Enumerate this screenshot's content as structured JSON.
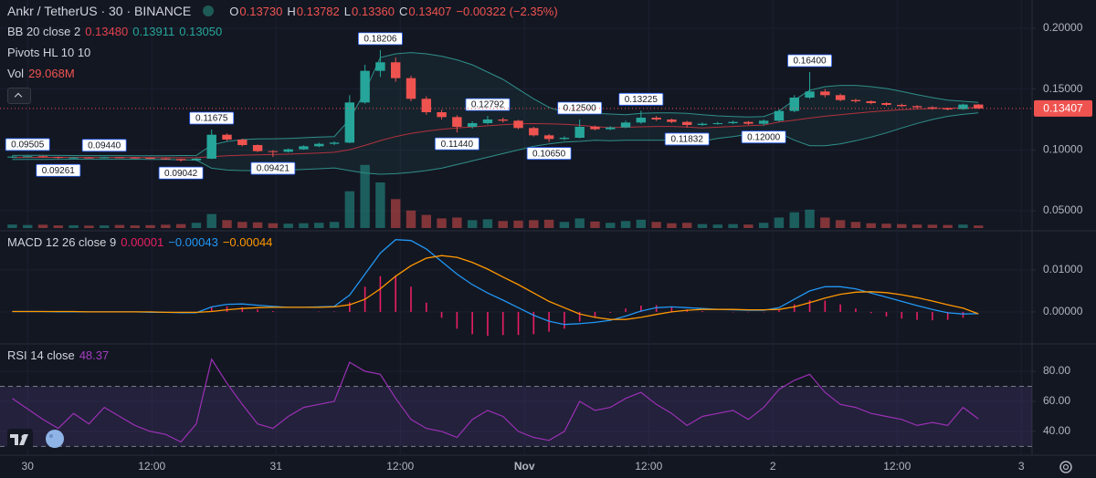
{
  "chart_data": [
    {
      "type": "candlestick",
      "title": "Ankr / TetherUS · 30 · BINANCE",
      "ohlc_legend": [
        {
          "name": "O",
          "value": 0.1373,
          "label": "0.13730"
        },
        {
          "name": "H",
          "value": 0.13782,
          "label": "0.13782"
        },
        {
          "name": "L",
          "value": 0.1336,
          "label": "0.13360"
        },
        {
          "name": "C",
          "value": 0.13407,
          "label": "0.13407"
        }
      ],
      "change": {
        "value": -0.00322,
        "percent": -2.35,
        "label": "−0.00322 (−2.35%)"
      },
      "up_color": "#26a69a",
      "down_color": "#ef5350",
      "ylim": [
        0.0358,
        0.2232
      ],
      "yticks": [
        {
          "value": 0.2,
          "label": "0.20000"
        },
        {
          "value": 0.15,
          "label": "0.15000"
        },
        {
          "value": 0.1,
          "label": "0.10000"
        },
        {
          "value": 0.05,
          "label": "0.05000"
        }
      ],
      "grid": true,
      "open": [
        0.094,
        0.0945,
        0.0948,
        0.0942,
        0.0935,
        0.0938,
        0.0936,
        0.094,
        0.0938,
        0.0935,
        0.093,
        0.0925,
        0.0915,
        0.0928,
        0.1125,
        0.1085,
        0.104,
        0.099,
        0.0985,
        0.1005,
        0.103,
        0.105,
        0.106,
        0.139,
        0.165,
        0.172,
        0.159,
        0.142,
        0.131,
        0.127,
        0.119,
        0.122,
        0.125,
        0.124,
        0.118,
        0.112,
        0.109,
        0.11,
        0.119,
        0.117,
        0.1185,
        0.1225,
        0.1265,
        0.125,
        0.123,
        0.1205,
        0.1215,
        0.122,
        0.123,
        0.1215,
        0.124,
        0.132,
        0.143,
        0.148,
        0.145,
        0.141,
        0.14,
        0.1385,
        0.137,
        0.136,
        0.135,
        0.134,
        0.1335,
        0.1373
      ],
      "high": [
        0.095,
        0.09505,
        0.0952,
        0.0946,
        0.0942,
        0.0941,
        0.0944,
        0.0943,
        0.0941,
        0.0939,
        0.0934,
        0.0928,
        0.0932,
        0.11675,
        0.1135,
        0.1092,
        0.1045,
        0.0998,
        0.1012,
        0.1038,
        0.106,
        0.107,
        0.145,
        0.17,
        0.18206,
        0.176,
        0.161,
        0.144,
        0.133,
        0.1285,
        0.1235,
        0.12792,
        0.1265,
        0.1248,
        0.119,
        0.113,
        0.1112,
        0.125,
        0.12,
        0.1195,
        0.124,
        0.13225,
        0.1278,
        0.1258,
        0.1238,
        0.1225,
        0.123,
        0.124,
        0.1238,
        0.125,
        0.1335,
        0.145,
        0.164,
        0.15,
        0.1462,
        0.142,
        0.1408,
        0.1392,
        0.138,
        0.1368,
        0.1358,
        0.1348,
        0.138,
        0.13782
      ],
      "low": [
        0.0935,
        0.094,
        0.0937,
        0.09261,
        0.093,
        0.0931,
        0.0932,
        0.0934,
        0.093,
        0.0926,
        0.092,
        0.09042,
        0.091,
        0.0925,
        0.1075,
        0.103,
        0.0982,
        0.09421,
        0.0978,
        0.1,
        0.1022,
        0.104,
        0.1055,
        0.138,
        0.16,
        0.156,
        0.14,
        0.129,
        0.125,
        0.1144,
        0.1175,
        0.121,
        0.1225,
        0.117,
        0.111,
        0.1065,
        0.108,
        0.1095,
        0.116,
        0.1162,
        0.1178,
        0.1215,
        0.1238,
        0.122,
        0.11832,
        0.1198,
        0.1208,
        0.1212,
        0.1205,
        0.12,
        0.1232,
        0.131,
        0.142,
        0.1432,
        0.14,
        0.1388,
        0.1375,
        0.136,
        0.1352,
        0.134,
        0.133,
        0.1325,
        0.133,
        0.1336
      ],
      "close": [
        0.0945,
        0.0948,
        0.0942,
        0.0935,
        0.0938,
        0.0936,
        0.094,
        0.0938,
        0.0935,
        0.093,
        0.0925,
        0.0915,
        0.0928,
        0.1125,
        0.1085,
        0.104,
        0.099,
        0.0985,
        0.1005,
        0.103,
        0.105,
        0.106,
        0.139,
        0.165,
        0.172,
        0.159,
        0.142,
        0.131,
        0.127,
        0.119,
        0.122,
        0.125,
        0.124,
        0.118,
        0.112,
        0.109,
        0.11,
        0.119,
        0.117,
        0.1185,
        0.1225,
        0.1265,
        0.125,
        0.123,
        0.1205,
        0.1215,
        0.122,
        0.123,
        0.1215,
        0.124,
        0.132,
        0.143,
        0.148,
        0.145,
        0.141,
        0.14,
        0.1385,
        0.137,
        0.136,
        0.135,
        0.134,
        0.1335,
        0.1373,
        0.13407
      ],
      "last_price": {
        "value": 0.13407,
        "label": "0.13407"
      },
      "bb": {
        "name": "BB 20 close 2",
        "basis_color": "#b2323e",
        "band_color": "#2f8f8a",
        "legend": [
          {
            "value": 0.1348,
            "label": "0.13480",
            "color": "#e0424e"
          },
          {
            "value": 0.13911,
            "label": "0.13911",
            "color": "#26a69a"
          },
          {
            "value": 0.1305,
            "label": "0.13050",
            "color": "#26a69a"
          }
        ],
        "basis": [
          0.0938,
          0.0939,
          0.0939,
          0.0939,
          0.0939,
          0.0938,
          0.0938,
          0.0938,
          0.0938,
          0.0937,
          0.0937,
          0.0936,
          0.0936,
          0.0945,
          0.0952,
          0.0957,
          0.096,
          0.0962,
          0.0965,
          0.097,
          0.0975,
          0.0981,
          0.1002,
          0.1037,
          0.1077,
          0.111,
          0.1136,
          0.1155,
          0.117,
          0.118,
          0.1189,
          0.1198,
          0.1207,
          0.1214,
          0.1216,
          0.1214,
          0.121,
          0.1203,
          0.1191,
          0.1183,
          0.1186,
          0.119,
          0.1193,
          0.1193,
          0.1188,
          0.1181,
          0.1187,
          0.1193,
          0.1199,
          0.1204,
          0.123,
          0.1245,
          0.1262,
          0.1277,
          0.129,
          0.1302,
          0.1313,
          0.1322,
          0.133,
          0.1336,
          0.134,
          0.1343,
          0.1346,
          0.1348
        ],
        "upper": [
          0.0955,
          0.0956,
          0.0956,
          0.0955,
          0.0954,
          0.0953,
          0.0953,
          0.0953,
          0.0952,
          0.0952,
          0.0952,
          0.0954,
          0.0955,
          0.104,
          0.107,
          0.1085,
          0.109,
          0.1092,
          0.1095,
          0.11,
          0.1105,
          0.111,
          0.125,
          0.148,
          0.176,
          0.179,
          0.18,
          0.179,
          0.177,
          0.174,
          0.17,
          0.164,
          0.158,
          0.15,
          0.142,
          0.135,
          0.131,
          0.131,
          0.13,
          0.1295,
          0.129,
          0.13,
          0.1305,
          0.1305,
          0.13,
          0.129,
          0.128,
          0.1275,
          0.127,
          0.1275,
          0.132,
          0.141,
          0.149,
          0.152,
          0.153,
          0.153,
          0.152,
          0.1505,
          0.148,
          0.1455,
          0.143,
          0.141,
          0.14,
          0.1391
        ],
        "lower": [
          0.0921,
          0.0922,
          0.0922,
          0.0923,
          0.0924,
          0.0923,
          0.0923,
          0.0923,
          0.0924,
          0.0922,
          0.0922,
          0.0918,
          0.0917,
          0.085,
          0.0835,
          0.083,
          0.083,
          0.0832,
          0.0835,
          0.084,
          0.0845,
          0.0852,
          0.083,
          0.081,
          0.08,
          0.0805,
          0.0815,
          0.083,
          0.085,
          0.088,
          0.091,
          0.094,
          0.097,
          0.1,
          0.103,
          0.105,
          0.1065,
          0.107,
          0.108,
          0.1075,
          0.108,
          0.108,
          0.108,
          0.108,
          0.1076,
          0.1072,
          0.1094,
          0.111,
          0.1128,
          0.1133,
          0.114,
          0.108,
          0.1035,
          0.1035,
          0.105,
          0.1075,
          0.1105,
          0.114,
          0.118,
          0.1218,
          0.125,
          0.1276,
          0.1292,
          0.1305
        ]
      },
      "pivots": {
        "name": "Pivots HL 10 10",
        "highs": [
          {
            "x": 1,
            "value": 0.09505,
            "label": "0.09505"
          },
          {
            "x": 6,
            "value": 0.0944,
            "label": "0.09440"
          },
          {
            "x": 13,
            "value": 0.11675,
            "label": "0.11675"
          },
          {
            "x": 24,
            "value": 0.18206,
            "label": "0.18206"
          },
          {
            "x": 31,
            "value": 0.12792,
            "label": "0.12792"
          },
          {
            "x": 37,
            "value": 0.125,
            "label": "0.12500"
          },
          {
            "x": 41,
            "value": 0.13225,
            "label": "0.13225"
          },
          {
            "x": 52,
            "value": 0.164,
            "label": "0.16400"
          }
        ],
        "lows": [
          {
            "x": 3,
            "value": 0.09261,
            "label": "0.09261"
          },
          {
            "x": 11,
            "value": 0.09042,
            "label": "0.09042"
          },
          {
            "x": 17,
            "value": 0.09421,
            "label": "0.09421"
          },
          {
            "x": 29,
            "value": 0.1144,
            "label": "0.11440"
          },
          {
            "x": 35,
            "value": 0.1065,
            "label": "0.10650"
          },
          {
            "x": 44,
            "value": 0.11832,
            "label": "0.11832"
          },
          {
            "x": 49,
            "value": 0.12,
            "label": "0.12000"
          }
        ]
      },
      "volume": {
        "name": "Vol",
        "last": {
          "value": 29.068,
          "label": "29.068M"
        },
        "ylim": [
          0,
          2600
        ],
        "up_color": "rgba(38,166,154,0.5)",
        "down_color": "rgba(239,83,80,0.5)",
        "values": [
          40,
          35,
          38,
          30,
          32,
          28,
          30,
          35,
          30,
          33,
          38,
          45,
          60,
          160,
          90,
          70,
          65,
          55,
          50,
          55,
          60,
          70,
          420,
          720,
          520,
          330,
          200,
          150,
          110,
          120,
          90,
          100,
          80,
          85,
          90,
          95,
          70,
          110,
          75,
          60,
          80,
          95,
          70,
          55,
          60,
          45,
          40,
          45,
          40,
          60,
          120,
          180,
          210,
          120,
          90,
          70,
          55,
          50,
          45,
          40,
          38,
          35,
          40,
          29.068
        ]
      }
    },
    {
      "type": "macd",
      "name": "MACD 12 26 close 9",
      "legend": [
        {
          "value": 1e-05,
          "label": "0.00001",
          "color": "#e91e63"
        },
        {
          "value": -0.00043,
          "label": "−0.00043",
          "color": "#2196f3"
        },
        {
          "value": -0.00044,
          "label": "−0.00044",
          "color": "#ff9800"
        }
      ],
      "ylim": [
        -0.0074,
        0.0191
      ],
      "yticks": [
        {
          "value": 0.01,
          "label": "0.01000"
        },
        {
          "value": 0,
          "label": "0.00000"
        }
      ],
      "grid": true,
      "series": [
        {
          "name": "MACD",
          "color": "#2196f3",
          "values": [
            0.0001,
            0.0001,
            0.0001,
            0,
            0,
            0,
            0,
            0,
            0,
            -0.0001,
            -0.0001,
            -0.0002,
            -0.0002,
            0.0012,
            0.0018,
            0.0019,
            0.0016,
            0.0013,
            0.0011,
            0.0011,
            0.0012,
            0.0013,
            0.004,
            0.009,
            0.014,
            0.0172,
            0.017,
            0.015,
            0.012,
            0.009,
            0.0065,
            0.0045,
            0.0028,
            0.001,
            -0.0008,
            -0.0022,
            -0.003,
            -0.0028,
            -0.0025,
            -0.002,
            -0.001,
            0.0002,
            0.001,
            0.0012,
            0.001,
            0.0008,
            0.0006,
            0.0005,
            0.0004,
            0.0004,
            0.001,
            0.003,
            0.005,
            0.006,
            0.006,
            0.0055,
            0.0045,
            0.0035,
            0.0025,
            0.0015,
            0.0006,
            -0.0002,
            -0.0005,
            -0.00043
          ]
        },
        {
          "name": "Signal",
          "color": "#ff9800",
          "values": [
            0.0001,
            0.0001,
            0.0001,
            0.0001,
            0.0001,
            0,
            0,
            0,
            0,
            0,
            -0.0001,
            -0.0001,
            -0.0001,
            0.0001,
            0.0005,
            0.0008,
            0.001,
            0.0011,
            0.0011,
            0.0011,
            0.0011,
            0.0012,
            0.0017,
            0.003,
            0.0055,
            0.0085,
            0.011,
            0.0128,
            0.0134,
            0.013,
            0.0118,
            0.0102,
            0.0083,
            0.0065,
            0.0045,
            0.0025,
            0.001,
            -0.0005,
            -0.0013,
            -0.0018,
            -0.0018,
            -0.0013,
            -0.0006,
            0,
            0.0004,
            0.0006,
            0.0006,
            0.0006,
            0.0005,
            0.0005,
            0.0006,
            0.0012,
            0.0022,
            0.0033,
            0.0042,
            0.0047,
            0.0048,
            0.0046,
            0.0041,
            0.0034,
            0.0026,
            0.0017,
            0.0009,
            -0.00044
          ]
        }
      ],
      "histogram": {
        "color": "#e91e63",
        "values": [
          0,
          0,
          0,
          -0.0001,
          -0.0001,
          0,
          0,
          0,
          0,
          -0.0001,
          0,
          -0.0001,
          -0.0001,
          0.0011,
          0.0013,
          0.0011,
          0.0006,
          0.0002,
          0,
          0,
          0.0001,
          0.0001,
          0.0023,
          0.006,
          0.0085,
          0.0087,
          0.006,
          0.0022,
          -0.0014,
          -0.004,
          -0.0053,
          -0.0057,
          -0.0055,
          -0.0055,
          -0.0053,
          -0.0047,
          -0.004,
          -0.0023,
          -0.0012,
          -0.0002,
          0.0008,
          0.0015,
          0.0016,
          0.0012,
          0.0006,
          0.0002,
          0,
          -0.0001,
          -0.0001,
          -0.0001,
          0.0004,
          0.0018,
          0.0028,
          0.0027,
          0.0018,
          0.0008,
          -0.0003,
          -0.0011,
          -0.0016,
          -0.0019,
          -0.002,
          -0.0019,
          -0.0014,
          1e-05
        ]
      }
    },
    {
      "type": "rsi",
      "name": "RSI 14 close",
      "legend": [
        {
          "value": 48.37,
          "label": "48.37",
          "color": "#a33fc0"
        }
      ],
      "color": "#9b30b5",
      "band": [
        30,
        70
      ],
      "band_color": "rgba(126,87,194,0.16)",
      "ylim": [
        24.8,
        97.6
      ],
      "yticks": [
        {
          "value": 80,
          "label": "80.00"
        },
        {
          "value": 60,
          "label": "60.00"
        },
        {
          "value": 40,
          "label": "40.00"
        }
      ],
      "grid": true,
      "values": [
        62,
        55,
        48,
        42,
        52,
        45,
        56,
        50,
        44,
        40,
        38,
        33,
        45,
        88,
        72,
        58,
        45,
        42,
        50,
        56,
        58,
        60,
        86,
        80,
        78,
        62,
        48,
        42,
        40,
        36,
        48,
        54,
        50,
        40,
        36,
        34,
        40,
        60,
        54,
        56,
        62,
        66,
        58,
        52,
        44,
        50,
        52,
        54,
        48,
        56,
        68,
        74,
        78,
        66,
        58,
        56,
        52,
        50,
        48,
        44,
        46,
        44,
        56,
        48.37
      ],
      "xlim": [
        -0.8,
        66.5
      ],
      "xticks": [
        {
          "value": 1,
          "label": "30"
        },
        {
          "value": 9.1,
          "label": "12:00"
        },
        {
          "value": 17.2,
          "label": "31"
        },
        {
          "value": 25.3,
          "label": "12:00"
        },
        {
          "value": 33.4,
          "label": "Nov"
        },
        {
          "value": 41.5,
          "label": "12:00"
        },
        {
          "value": 49.6,
          "label": "2"
        },
        {
          "value": 57.7,
          "label": "12:00"
        },
        {
          "value": 65.8,
          "label": "3"
        }
      ]
    }
  ]
}
